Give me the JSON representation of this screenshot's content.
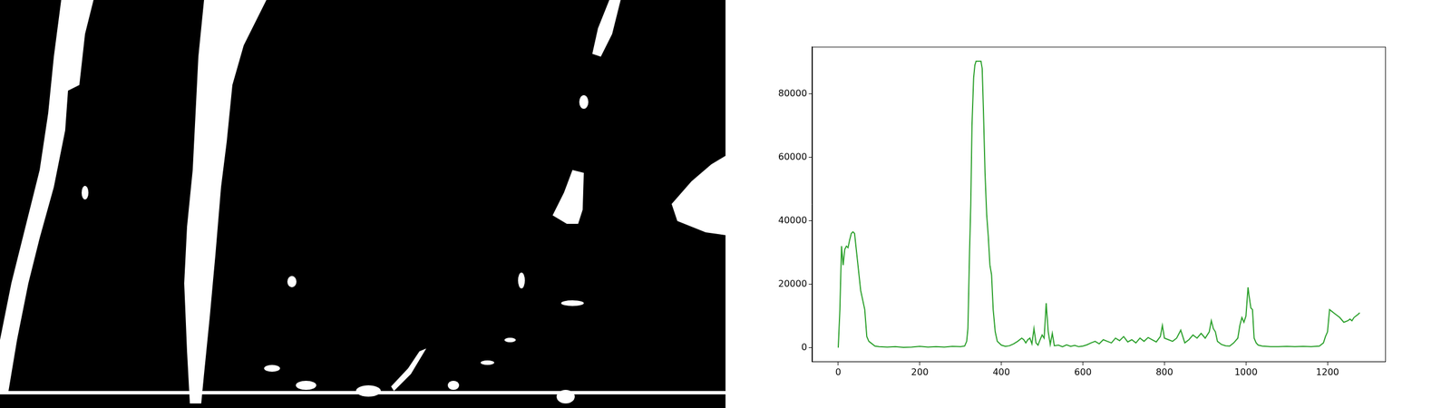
{
  "chart_data": {
    "type": "line",
    "color": "#2ca02c",
    "grid": false,
    "x": [
      0,
      4,
      8,
      12,
      16,
      20,
      24,
      28,
      32,
      36,
      40,
      45,
      50,
      55,
      60,
      65,
      70,
      75,
      80,
      90,
      100,
      120,
      140,
      160,
      180,
      200,
      220,
      240,
      260,
      280,
      300,
      310,
      315,
      318,
      322,
      325,
      328,
      332,
      335,
      338,
      345,
      350,
      353,
      356,
      360,
      364,
      368,
      372,
      376,
      380,
      385,
      390,
      400,
      410,
      420,
      430,
      440,
      450,
      455,
      460,
      465,
      470,
      475,
      480,
      485,
      490,
      495,
      500,
      505,
      510,
      515,
      520,
      525,
      530,
      540,
      550,
      560,
      570,
      580,
      590,
      600,
      610,
      620,
      630,
      640,
      650,
      660,
      670,
      680,
      690,
      700,
      710,
      720,
      730,
      740,
      750,
      760,
      770,
      780,
      790,
      795,
      800,
      810,
      820,
      830,
      840,
      845,
      850,
      860,
      870,
      880,
      890,
      900,
      910,
      915,
      920,
      925,
      930,
      940,
      950,
      960,
      970,
      980,
      985,
      990,
      995,
      1000,
      1005,
      1008,
      1012,
      1016,
      1020,
      1025,
      1030,
      1040,
      1060,
      1080,
      1100,
      1120,
      1140,
      1160,
      1180,
      1190,
      1195,
      1200,
      1205,
      1210,
      1215,
      1220,
      1225,
      1230,
      1240,
      1250,
      1255,
      1260,
      1265,
      1270,
      1275,
      1279
    ],
    "values": [
      0,
      12000,
      32000,
      26000,
      31000,
      32000,
      31500,
      34000,
      36000,
      36500,
      36000,
      30000,
      24000,
      18000,
      15000,
      12000,
      3500,
      2000,
      1500,
      500,
      300,
      200,
      300,
      100,
      200,
      400,
      200,
      300,
      200,
      400,
      300,
      500,
      2000,
      6000,
      30000,
      45000,
      70000,
      85000,
      89000,
      90300,
      90300,
      90300,
      88000,
      75000,
      55000,
      42000,
      35000,
      26000,
      23000,
      12000,
      5000,
      2000,
      800,
      400,
      600,
      1200,
      2000,
      3000,
      2500,
      1500,
      2500,
      3000,
      1200,
      6000,
      1500,
      800,
      2500,
      4000,
      3000,
      14000,
      5000,
      1000,
      4500,
      600,
      800,
      300,
      900,
      400,
      700,
      300,
      500,
      900,
      1500,
      2000,
      1200,
      2500,
      2000,
      1500,
      3000,
      2200,
      3500,
      1800,
      2500,
      1500,
      3000,
      2000,
      3200,
      2500,
      1800,
      3500,
      7000,
      3000,
      2500,
      2000,
      3000,
      5500,
      3500,
      1500,
      2500,
      4000,
      3000,
      4500,
      3000,
      5000,
      8500,
      6000,
      5000,
      2000,
      1000,
      600,
      500,
      1500,
      3000,
      7000,
      9500,
      8000,
      10000,
      19000,
      16000,
      12500,
      12000,
      3000,
      1500,
      800,
      500,
      300,
      300,
      400,
      300,
      400,
      300,
      500,
      1500,
      3500,
      5000,
      12000,
      11500,
      11000,
      10500,
      10000,
      9500,
      8000,
      8500,
      9000,
      8500,
      9500,
      10000,
      10500,
      11000
    ],
    "xlim": [
      -64,
      1343
    ],
    "xticks": [
      0,
      200,
      400,
      600,
      800,
      1000,
      1200
    ],
    "ylim": [
      -4515,
      94815
    ],
    "yticks": [
      0,
      20000,
      40000,
      60000,
      80000
    ]
  }
}
